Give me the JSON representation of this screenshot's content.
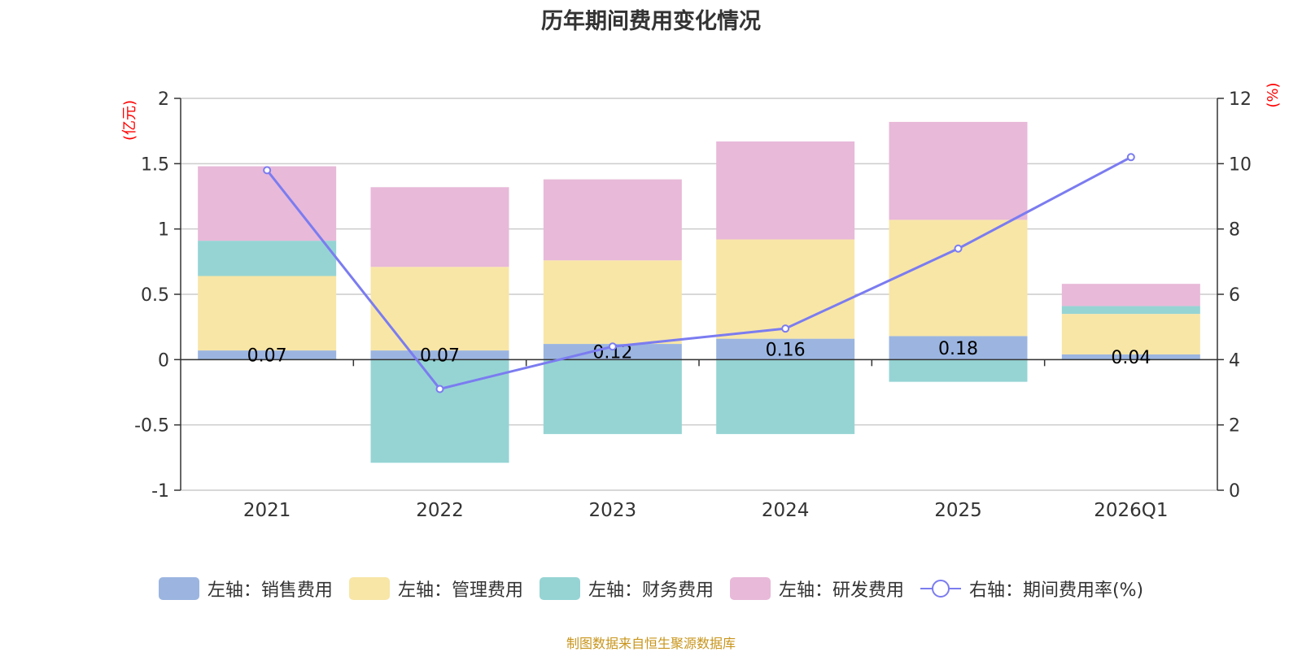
{
  "chart_data": {
    "type": "bar",
    "title": "历年期间费用变化情况",
    "categories": [
      "2021",
      "2022",
      "2023",
      "2024",
      "2025",
      "2026Q1"
    ],
    "left_axis": {
      "label": "(亿元)",
      "ylim": [
        -1,
        2
      ],
      "ticks": [
        "-1",
        "-0.5",
        "0",
        "0.5",
        "1",
        "1.5",
        "2"
      ],
      "tick_values": [
        -1,
        -0.5,
        0,
        0.5,
        1,
        1.5,
        2
      ]
    },
    "right_axis": {
      "label": "(%)",
      "ylim": [
        0,
        12
      ],
      "ticks": [
        "0",
        "2",
        "4",
        "6",
        "8",
        "10",
        "12"
      ],
      "tick_values": [
        0,
        2,
        4,
        6,
        8,
        10,
        12
      ]
    },
    "series": [
      {
        "name": "左轴：销售费用",
        "type": "bar",
        "axis": "left",
        "color": "#9bb5e0",
        "values": [
          0.07,
          0.07,
          0.12,
          0.16,
          0.18,
          0.04
        ],
        "labels": [
          "0.07",
          "0.07",
          "0.12",
          "0.16",
          "0.18",
          "0.04"
        ]
      },
      {
        "name": "左轴：管理费用",
        "type": "bar",
        "axis": "left",
        "color": "#f8e6a7",
        "values": [
          0.57,
          0.64,
          0.64,
          0.76,
          0.89,
          0.31
        ]
      },
      {
        "name": "左轴：财务费用",
        "type": "bar",
        "axis": "left",
        "color": "#96d4d4",
        "values": [
          0.27,
          -0.79,
          -0.57,
          -0.57,
          -0.17,
          0.06
        ]
      },
      {
        "name": "左轴：研发费用",
        "type": "bar",
        "axis": "left",
        "color": "#e8b9d9",
        "values": [
          0.57,
          0.61,
          0.62,
          0.75,
          0.75,
          0.17
        ]
      },
      {
        "name": "右轴：期间费用率(%)",
        "type": "line",
        "axis": "right",
        "color": "#7b7cf0",
        "values": [
          9.8,
          3.1,
          4.4,
          4.95,
          7.4,
          10.2
        ]
      }
    ],
    "source": "制图数据来自恒生聚源数据库"
  }
}
